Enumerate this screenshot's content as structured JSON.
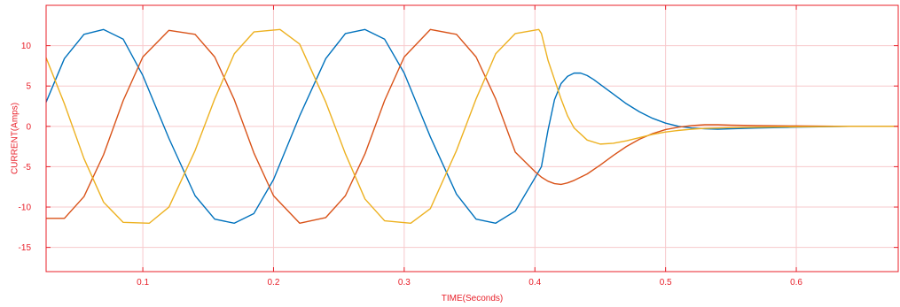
{
  "chart_data": {
    "type": "line",
    "title": "",
    "xlabel": "TIME(Seconds)",
    "ylabel": "CURRENT(Amps)",
    "xlim": [
      0.026,
      0.678
    ],
    "ylim": [
      -18,
      15
    ],
    "xticks": [
      0.1,
      0.2,
      0.3,
      0.4,
      0.5,
      0.6
    ],
    "xtick_labels": [
      "0.1",
      "0.2",
      "0.3",
      "0.4",
      "0.5",
      "0.6"
    ],
    "yticks": [
      10,
      5,
      0,
      -5,
      -10,
      -15
    ],
    "ytick_labels": [
      "10",
      "5",
      "0",
      "-5",
      "-10",
      "-15"
    ],
    "grid": true,
    "axis_color": "#e8202a",
    "grid_color": "#f7c9cc",
    "series": [
      {
        "color": "#0072bd",
        "x": [
          0.026,
          0.04,
          0.055,
          0.07,
          0.085,
          0.1,
          0.12,
          0.14,
          0.155,
          0.17,
          0.185,
          0.2,
          0.22,
          0.24,
          0.255,
          0.27,
          0.285,
          0.3,
          0.32,
          0.34,
          0.355,
          0.37,
          0.385,
          0.4,
          0.405,
          0.41,
          0.415,
          0.42,
          0.425,
          0.43,
          0.435,
          0.44,
          0.445,
          0.45,
          0.46,
          0.47,
          0.48,
          0.49,
          0.5,
          0.51,
          0.52,
          0.53,
          0.54,
          0.55,
          0.57,
          0.6,
          0.64,
          0.678
        ],
        "y": [
          3.0,
          8.4,
          11.4,
          12.0,
          10.8,
          6.3,
          -1.5,
          -8.6,
          -11.5,
          -12.0,
          -10.8,
          -6.6,
          1.3,
          8.4,
          11.5,
          12.0,
          10.8,
          6.6,
          -1.3,
          -8.4,
          -11.5,
          -12.0,
          -10.5,
          -6.4,
          -5.0,
          -0.5,
          3.3,
          5.3,
          6.2,
          6.6,
          6.6,
          6.3,
          5.8,
          5.2,
          4.0,
          2.8,
          1.8,
          1.0,
          0.4,
          0.0,
          -0.2,
          -0.3,
          -0.35,
          -0.3,
          -0.2,
          -0.1,
          0.0,
          0.0
        ]
      },
      {
        "color": "#d95319",
        "x": [
          0.026,
          0.04,
          0.055,
          0.07,
          0.085,
          0.1,
          0.12,
          0.14,
          0.155,
          0.17,
          0.185,
          0.2,
          0.22,
          0.24,
          0.255,
          0.27,
          0.285,
          0.3,
          0.32,
          0.34,
          0.355,
          0.37,
          0.385,
          0.4,
          0.405,
          0.41,
          0.415,
          0.42,
          0.425,
          0.43,
          0.44,
          0.45,
          0.46,
          0.47,
          0.48,
          0.49,
          0.5,
          0.51,
          0.52,
          0.53,
          0.54,
          0.55,
          0.57,
          0.6,
          0.64,
          0.678
        ],
        "y": [
          -11.4,
          -11.4,
          -8.7,
          -3.5,
          3.2,
          8.6,
          11.9,
          11.4,
          8.6,
          3.3,
          -3.3,
          -8.6,
          -12.0,
          -11.3,
          -8.6,
          -3.4,
          3.2,
          8.6,
          12.0,
          11.4,
          8.6,
          3.4,
          -3.2,
          -5.6,
          -6.3,
          -6.8,
          -7.1,
          -7.2,
          -7.0,
          -6.7,
          -5.9,
          -4.8,
          -3.6,
          -2.5,
          -1.6,
          -0.9,
          -0.4,
          -0.1,
          0.1,
          0.2,
          0.2,
          0.15,
          0.1,
          0.05,
          0.0,
          0.0
        ]
      },
      {
        "color": "#edb120",
        "x": [
          0.026,
          0.04,
          0.055,
          0.07,
          0.085,
          0.105,
          0.12,
          0.14,
          0.155,
          0.17,
          0.185,
          0.205,
          0.22,
          0.24,
          0.255,
          0.27,
          0.285,
          0.305,
          0.32,
          0.34,
          0.355,
          0.37,
          0.385,
          0.403,
          0.405,
          0.41,
          0.415,
          0.42,
          0.425,
          0.43,
          0.44,
          0.45,
          0.46,
          0.47,
          0.48,
          0.49,
          0.5,
          0.51,
          0.52,
          0.53,
          0.54,
          0.55,
          0.57,
          0.6,
          0.64,
          0.678
        ],
        "y": [
          8.5,
          2.8,
          -4.0,
          -9.4,
          -11.9,
          -12.0,
          -10.0,
          -3.0,
          3.4,
          9.0,
          11.7,
          12.0,
          10.2,
          3.0,
          -3.4,
          -9.0,
          -11.7,
          -12.0,
          -10.2,
          -3.0,
          3.4,
          9.0,
          11.5,
          12.0,
          11.5,
          8.2,
          5.8,
          3.4,
          1.3,
          -0.2,
          -1.7,
          -2.2,
          -2.1,
          -1.8,
          -1.4,
          -1.0,
          -0.7,
          -0.5,
          -0.35,
          -0.25,
          -0.2,
          -0.15,
          -0.1,
          -0.05,
          0.0,
          0.0
        ]
      }
    ]
  }
}
